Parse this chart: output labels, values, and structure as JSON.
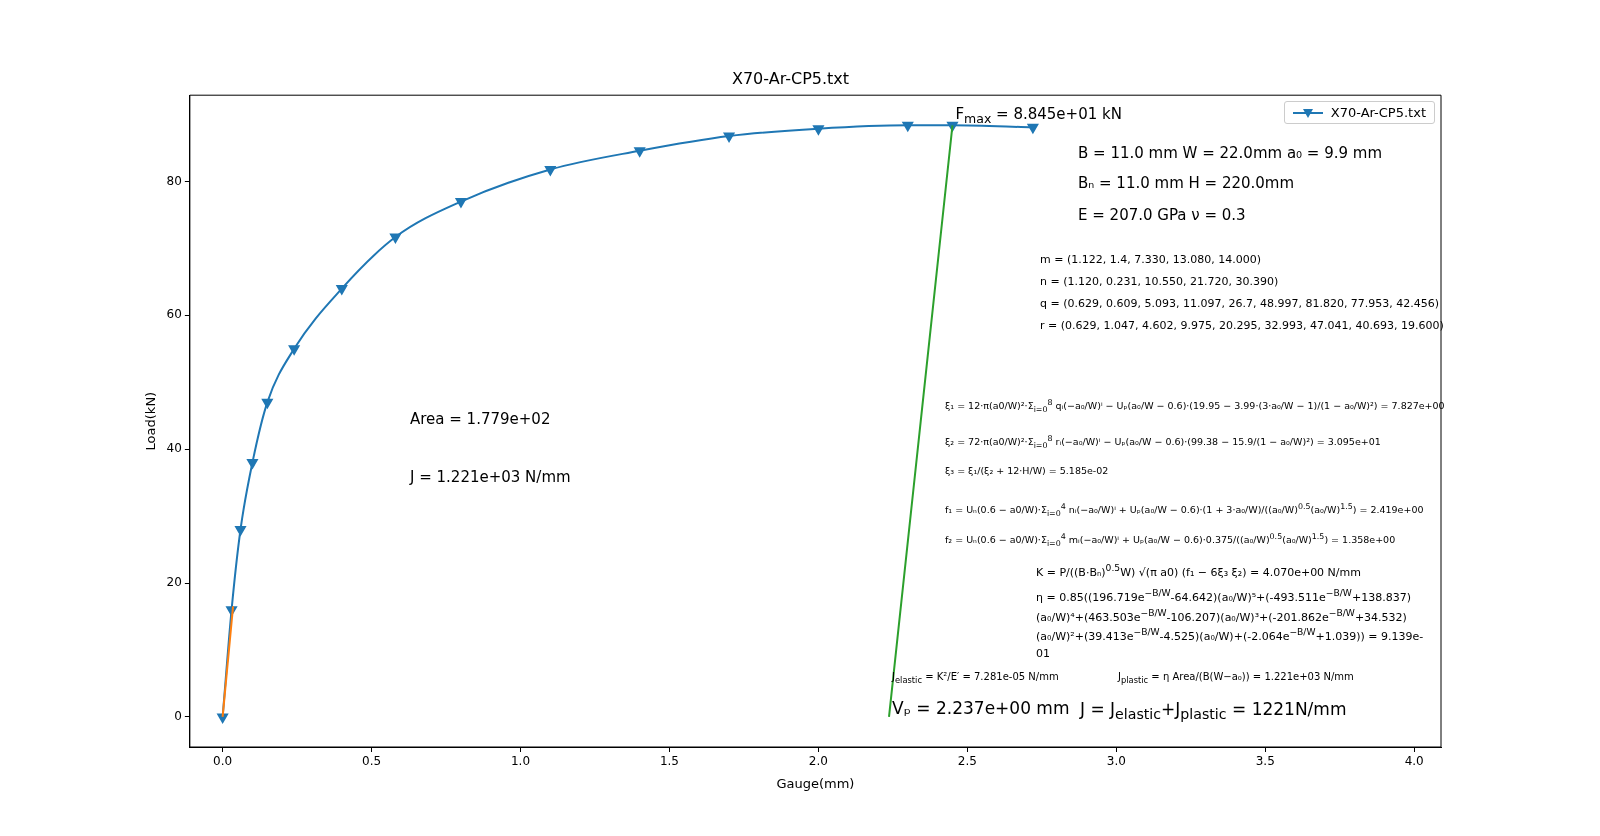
{
  "chart_data": {
    "type": "line",
    "title": "X70-Ar-CP5.txt",
    "xlabel": "Gauge(mm)",
    "ylabel": "Load(kN)",
    "xlim": [
      -0.11,
      4.09
    ],
    "ylim": [
      -4.5,
      92.9
    ],
    "xticks": [
      {
        "value": 0,
        "label": "0.0"
      },
      {
        "value": 0.5,
        "label": "0.5"
      },
      {
        "value": 1,
        "label": "1.0"
      },
      {
        "value": 1.5,
        "label": "1.5"
      },
      {
        "value": 2,
        "label": "2.0"
      },
      {
        "value": 2.5,
        "label": "2.5"
      },
      {
        "value": 3,
        "label": "3.0"
      },
      {
        "value": 3.5,
        "label": "3.5"
      },
      {
        "value": 4,
        "label": "4.0"
      }
    ],
    "yticks": [
      0,
      20,
      40,
      60,
      80
    ],
    "grid": false,
    "legend": "top right",
    "series": [
      {
        "name": "X70-Ar-CP5.txt",
        "color": "#1f77b4",
        "marker": "triangle",
        "x": [
          0,
          0.03,
          0.06,
          0.1,
          0.15,
          0.24,
          0.4,
          0.58,
          0.8,
          1.1,
          1.4,
          1.7,
          2.0,
          2.3,
          2.45,
          2.72
        ],
        "values": [
          0,
          16,
          28,
          38,
          47,
          55,
          64,
          71.7,
          77,
          81.8,
          84.6,
          86.8,
          87.9,
          88.4,
          88.4,
          88.1
        ]
      },
      {
        "color": "#ff7f0e",
        "x": [
          0,
          0.035
        ],
        "values": [
          0,
          16.5
        ]
      },
      {
        "color": "#2ca02c",
        "x": [
          2.237,
          2.45
        ],
        "values": [
          0,
          88.4
        ]
      }
    ],
    "annotations": [
      {
        "text": "F$_{max}$ = 8.845e+01 kN",
        "x": 2.45,
        "y": 88.4
      },
      "B = 11.0 mm  W = 22.0mm  a₀ = 9.9 mm",
      "Bₙ = 11.0 mm  H = 220.0mm",
      "E = 207.0 GPa  ν = 0.3",
      "m = (1.122, 1.4, 7.330, 13.080, 14.000)",
      "n = (1.120, 0.231, 10.550, 21.720, 30.390)",
      "q = (0.629, 0.609, 5.093, 11.097, 26.7, 48.997, 81.820, 77.953, 42.456)",
      "r = (0.629, 1.047, 4.602, 9.975, 20.295, 32.993, 47.041, 40.693, 19.600)",
      "ξ₁ = 12·π(a0/W)²·Σ$_{i=0}$$^{8}$ qᵢ(−a₀/W)ⁱ − Uₚ(a₀/W − 0.6)·(19.95 − 3.99·(3·a₀/W − 1)/(1 − a₀/W)²) = 7.827e+00",
      "ξ₂ = 72·π(a0/W)²·Σ$_{i=0}$$^{8}$ rᵢ(−a₀/W)ⁱ − Uₚ(a₀/W − 0.6)·(99.38 − 15.9/(1 − a₀/W)²) = 3.095e+01",
      "ξ₃ = ξ₁/(ξ₂ + 12·H/W) = 5.185e-02",
      "f₁ = Uₙ(0.6 − a0/W)·Σ$_{i=0}$$^{4}$ nᵢ(−a₀/W)ⁱ + Uₚ(a₀/W − 0.6)·(1 + 3·a₀/W)/((a₀/W)$^{0.5}$(a₀/W)$^{1.5}$) = 2.419e+00",
      "f₂ = Uₙ(0.6 − a0/W)·Σ$_{i=0}$$^{4}$ mᵢ(−a₀/W)ⁱ + Uₚ(a₀/W − 0.6)·0.375/((a₀/W)$^{0.5}$(a₀/W)$^{1.5}$) = 1.358e+00",
      "K = P/((B·Bₙ)$^{0.5}$W) √(π a0) (f₁ − 6ξ₃ ξ₂) = 4.070e+00 N/mm",
      "η = 0.85((196.719e$^{−B/W}$-64.642)(a₀/W)⁵+(-493.511e$^{−B/W}$+138.837)(a₀/W)⁴+(463.503e$^{−B/W}$-106.207)(a₀/W)³+(-201.862e$^{−B/W}$+34.532)(a₀/W)²+(39.413e$^{−B/W}$-4.525)(a₀/W)+(-2.064e$^{−B/W}$+1.039)) = 9.139e-01",
      "J$_{elastic}$ = K²/E′ = 7.281e-05 N/mm",
      "J$_{plastic}$ = η Area/(B(W−a₀)) = 1.221e+03 N/mm",
      {
        "text": "Vₚ = 2.237e+00 mm",
        "x": 2.237,
        "y": 0
      },
      "J = J$_{elastic}$+J$_{plastic}$ = 1221N/mm",
      "Area = 1.779e+02",
      "J = 1.221e+03 N/mm"
    ]
  }
}
